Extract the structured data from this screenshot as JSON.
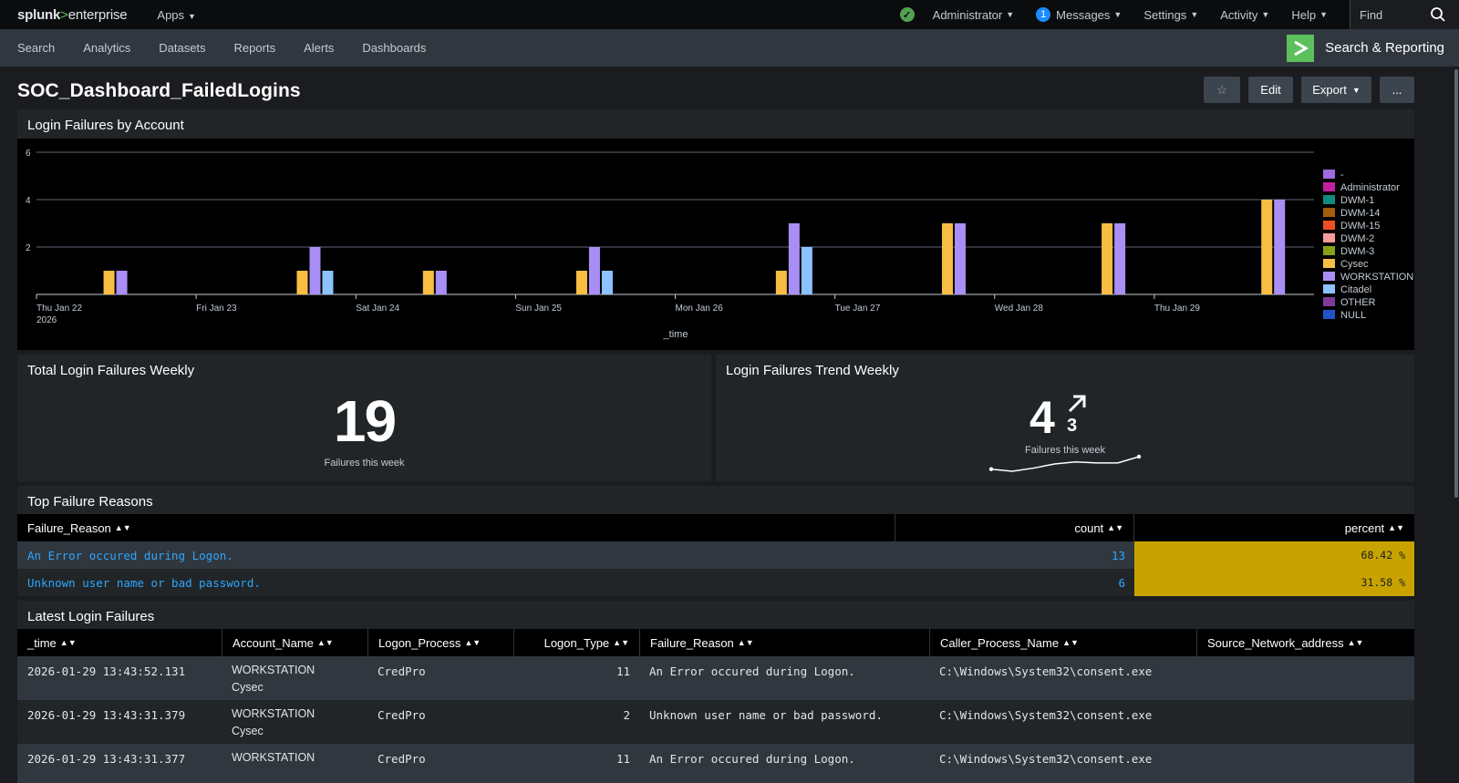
{
  "topbar": {
    "logo_brand": "splunk",
    "logo_sep": ">",
    "logo_product": "enterprise",
    "apps": "Apps",
    "user": "Administrator",
    "messages_count": "1",
    "messages": "Messages",
    "settings": "Settings",
    "activity": "Activity",
    "help": "Help",
    "find_placeholder": "Find"
  },
  "nav": {
    "items": [
      "Search",
      "Analytics",
      "Datasets",
      "Reports",
      "Alerts",
      "Dashboards"
    ],
    "app_name": "Search & Reporting"
  },
  "page": {
    "title": "SOC_Dashboard_FailedLogins",
    "star": "☆",
    "edit": "Edit",
    "export": "Export",
    "more": "..."
  },
  "panels": {
    "chart_title": "Login Failures by Account",
    "total_title": "Total Login Failures Weekly",
    "total_value": "19",
    "total_caption": "Failures this week",
    "trend_title": "Login Failures Trend Weekly",
    "trend_value": "4",
    "trend_delta": "3",
    "trend_caption": "Failures this week",
    "reasons_title": "Top Failure Reasons",
    "latest_title": "Latest Login Failures"
  },
  "chart_data": {
    "type": "bar",
    "xlabel": "_time",
    "ylim": [
      0,
      6
    ],
    "yticks": [
      2,
      4,
      6
    ],
    "x_ticks": [
      "Thu Jan 22",
      "Fri Jan 23",
      "Sat Jan 24",
      "Sun Jan 25",
      "Mon Jan 26",
      "Tue Jan 27",
      "Wed Jan 28",
      "Thu Jan 29"
    ],
    "x_year": "2026",
    "legend": [
      {
        "name": "-",
        "color": "#9c6bde"
      },
      {
        "name": "Administrator",
        "color": "#c21fa1"
      },
      {
        "name": "DWM-1",
        "color": "#108b7f"
      },
      {
        "name": "DWM-14",
        "color": "#a25e0b"
      },
      {
        "name": "DWM-15",
        "color": "#f04e23"
      },
      {
        "name": "DWM-2",
        "color": "#f59b9b"
      },
      {
        "name": "DWM-3",
        "color": "#85a217"
      },
      {
        "name": "Cysec",
        "color": "#f8be44"
      },
      {
        "name": "WORKSTATION",
        "color": "#a98ff5"
      },
      {
        "name": "Citadel",
        "color": "#8cc2ff"
      },
      {
        "name": "OTHER",
        "color": "#7d3a99"
      },
      {
        "name": "NULL",
        "color": "#1f56c7"
      }
    ],
    "groups": [
      {
        "time": "Thu Jan 22 12:00",
        "bars": [
          {
            "series": "Cysec",
            "value": 1
          },
          {
            "series": "WORKSTATION",
            "value": 1
          }
        ]
      },
      {
        "time": "Fri Jan 23 18:00",
        "bars": [
          {
            "series": "Cysec",
            "value": 1
          },
          {
            "series": "WORKSTATION",
            "value": 2
          },
          {
            "series": "Citadel",
            "value": 1
          }
        ]
      },
      {
        "time": "Sat Jan 24 12:00",
        "bars": [
          {
            "series": "Cysec",
            "value": 1
          },
          {
            "series": "WORKSTATION",
            "value": 1
          }
        ]
      },
      {
        "time": "Sun Jan 25 12:00",
        "bars": [
          {
            "series": "Cysec",
            "value": 1
          },
          {
            "series": "WORKSTATION",
            "value": 2
          },
          {
            "series": "Citadel",
            "value": 1
          }
        ]
      },
      {
        "time": "Mon Jan 26 18:00",
        "bars": [
          {
            "series": "Cysec",
            "value": 1
          },
          {
            "series": "WORKSTATION",
            "value": 3
          },
          {
            "series": "Citadel",
            "value": 2
          }
        ]
      },
      {
        "time": "Tue Jan 27 18:00",
        "bars": [
          {
            "series": "Cysec",
            "value": 3
          },
          {
            "series": "WORKSTATION",
            "value": 3
          }
        ]
      },
      {
        "time": "Wed Jan 28 18:00",
        "bars": [
          {
            "series": "Cysec",
            "value": 3
          },
          {
            "series": "WORKSTATION",
            "value": 3
          }
        ]
      },
      {
        "time": "Thu Jan 29 18:00",
        "bars": [
          {
            "series": "Cysec",
            "value": 4
          },
          {
            "series": "WORKSTATION",
            "value": 4
          }
        ]
      }
    ],
    "sparkline": [
      1,
      0.6,
      1.2,
      2.0,
      2.4,
      2.2,
      2.2,
      3.4
    ]
  },
  "reasons": {
    "headers": [
      "Failure_Reason",
      "count",
      "percent"
    ],
    "rows": [
      {
        "reason": "An Error occured during Logon.",
        "count": "13",
        "percent": "68.42 %"
      },
      {
        "reason": "Unknown user name or bad password.",
        "count": "6",
        "percent": "31.58 %"
      }
    ],
    "highlight_color": "#c8a300"
  },
  "latest": {
    "headers": [
      "_time",
      "Account_Name",
      "Logon_Process",
      "Logon_Type",
      "Failure_Reason",
      "Caller_Process_Name",
      "Source_Network_address"
    ],
    "rows": [
      {
        "time": "2026-01-29 13:43:52.131",
        "account1": "WORKSTATION",
        "account2": "Cysec",
        "process": "CredPro",
        "type": "11",
        "reason": "An Error occured during Logon.",
        "caller": "C:\\Windows\\System32\\consent.exe",
        "source": ""
      },
      {
        "time": "2026-01-29 13:43:31.379",
        "account1": "WORKSTATION",
        "account2": "Cysec",
        "process": "CredPro",
        "type": "2",
        "reason": "Unknown user name or bad password.",
        "caller": "C:\\Windows\\System32\\consent.exe",
        "source": ""
      },
      {
        "time": "2026-01-29 13:43:31.377",
        "account1": "WORKSTATION",
        "account2": "",
        "process": "CredPro",
        "type": "11",
        "reason": "An Error occured during Logon.",
        "caller": "C:\\Windows\\System32\\consent.exe",
        "source": ""
      }
    ]
  }
}
